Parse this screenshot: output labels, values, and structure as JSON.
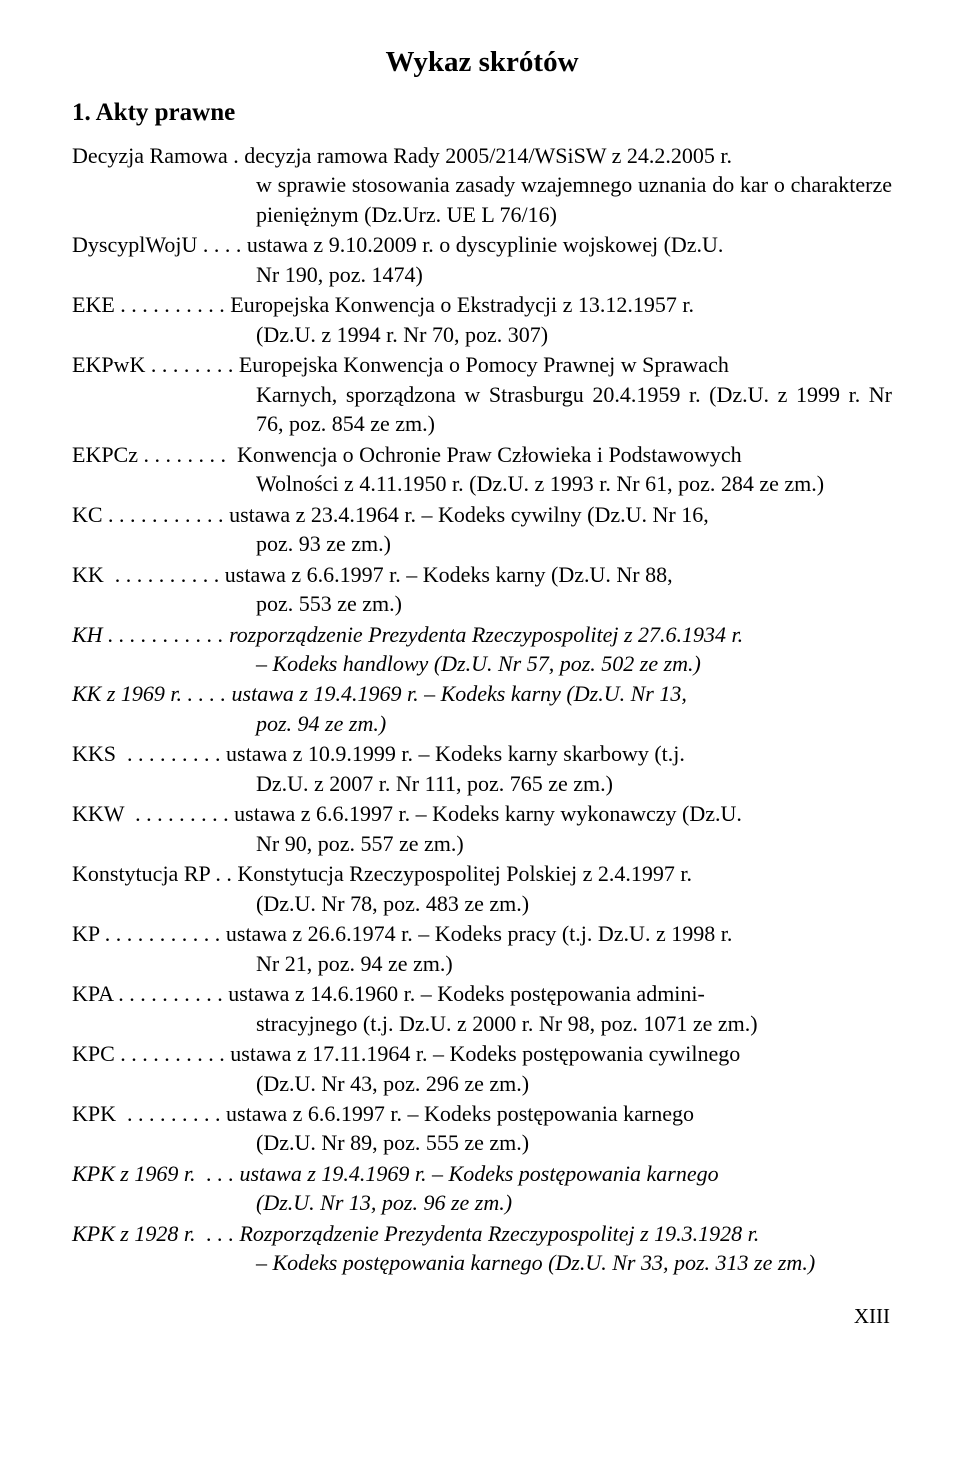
{
  "title": "Wykaz skrótów",
  "section": "1. Akty prawne",
  "entries": [
    {
      "abbr": "Decyzja Ramowa .",
      "firstline": "decyzja ramowa Rady 2005/214/WSiSW z 24.2.2005 r.",
      "cont": "w sprawie stosowania zasady wzajemnego uznania do kar o charakterze pieniężnym (Dz.Urz. UE L 76/16)",
      "italic": false
    },
    {
      "abbr": "DyscyplWojU . . . .",
      "firstline": "ustawa z 9.10.2009 r. o dyscyplinie wojskowej (Dz.U.",
      "cont": "Nr 190, poz. 1474)",
      "italic": false
    },
    {
      "abbr": "EKE . . . . . . . . . .",
      "firstline": "Europejska Konwencja o Ekstradycji z 13.12.1957 r.",
      "cont": "(Dz.U. z 1994 r. Nr 70, poz. 307)",
      "italic": false
    },
    {
      "abbr": "EKPwK . . . . . . . .",
      "firstline": "Europejska Konwencja o Pomocy Prawnej w Sprawach",
      "cont": "Karnych, sporządzona w Strasburgu 20.4.1959 r. (Dz.U. z 1999 r. Nr 76, poz. 854 ze zm.)",
      "italic": false
    },
    {
      "abbr": "EKPCz . . . . . . . .",
      "firstline": " Konwencja o Ochronie Praw Człowieka i Podstawowych",
      "cont": "Wolności z  4.11.1950 r. (Dz.U. z 1993 r. Nr 61, poz. 284 ze zm.)",
      "italic": false
    },
    {
      "abbr": "KC . . . . . . . . . . .",
      "firstline": "ustawa z 23.4.1964 r. – Kodeks cywilny (Dz.U. Nr 16,",
      "cont": "poz. 93 ze zm.)",
      "italic": false
    },
    {
      "abbr": "KK  . . . . . . . . . .",
      "firstline": "ustawa z 6.6.1997 r. – Kodeks karny (Dz.U. Nr 88,",
      "cont": "poz. 553 ze zm.)",
      "italic": false
    },
    {
      "abbr": "KH . . . . . . . . . . .",
      "firstline": "rozporządzenie Prezydenta Rzeczypospolitej z 27.6.1934 r.",
      "cont": "– Kodeks handlowy (Dz.U. Nr 57, poz. 502 ze zm.)",
      "italic": true
    },
    {
      "abbr": "KK z 1969 r. . . . .",
      "firstline": "ustawa z 19.4.1969 r. – Kodeks karny (Dz.U. Nr 13,",
      "cont": "poz. 94 ze zm.)",
      "italic": true
    },
    {
      "abbr": "KKS  . . . . . . . . .",
      "firstline": "ustawa z 10.9.1999 r. – Kodeks karny skarbowy (t.j.",
      "cont": "Dz.U. z 2007 r. Nr 111, poz. 765 ze zm.)",
      "italic": false
    },
    {
      "abbr": "KKW  . . . . . . . . .",
      "firstline": "ustawa z 6.6.1997 r. – Kodeks karny wykonawczy (Dz.U.",
      "cont": "Nr 90, poz. 557 ze zm.)",
      "italic": false
    },
    {
      "abbr": "Konstytucja RP . .",
      "firstline": "Konstytucja Rzeczypospolitej Polskiej z 2.4.1997 r.",
      "cont": "(Dz.U. Nr 78, poz. 483 ze zm.)",
      "italic": false
    },
    {
      "abbr": "KP . . . . . . . . . . .",
      "firstline": "ustawa z 26.6.1974 r. – Kodeks pracy (t.j. Dz.U. z 1998 r.",
      "cont": "Nr 21, poz. 94 ze zm.)",
      "italic": false
    },
    {
      "abbr": "KPA . . . . . . . . . .",
      "firstline": "ustawa z 14.6.1960 r. – Kodeks postępowania admini-",
      "cont": "stracyjnego (t.j. Dz.U. z 2000 r. Nr 98, poz. 1071 ze zm.)",
      "italic": false
    },
    {
      "abbr": "KPC . . . . . . . . . .",
      "firstline": "ustawa z 17.11.1964 r. – Kodeks postępowania cywilnego",
      "cont": "(Dz.U. Nr 43, poz. 296 ze zm.)",
      "italic": false
    },
    {
      "abbr": "KPK  . . . . . . . . .",
      "firstline": "ustawa z 6.6.1997 r. – Kodeks postępowania karnego",
      "cont": "(Dz.U. Nr 89, poz. 555 ze zm.)",
      "italic": false
    },
    {
      "abbr": "KPK z 1969 r.  . . .",
      "firstline": "ustawa z 19.4.1969 r. – Kodeks postępowania karnego",
      "cont": "(Dz.U. Nr 13, poz. 96 ze zm.)",
      "italic": true
    },
    {
      "abbr": "KPK z 1928 r.  . . .",
      "firstline": "Rozporządzenie Prezydenta Rzeczypospolitej z 19.3.1928 r.",
      "cont": "– Kodeks postępowania karnego (Dz.U. Nr 33, poz. 313 ze zm.)",
      "italic": true
    }
  ],
  "pageNumber": "XIII"
}
